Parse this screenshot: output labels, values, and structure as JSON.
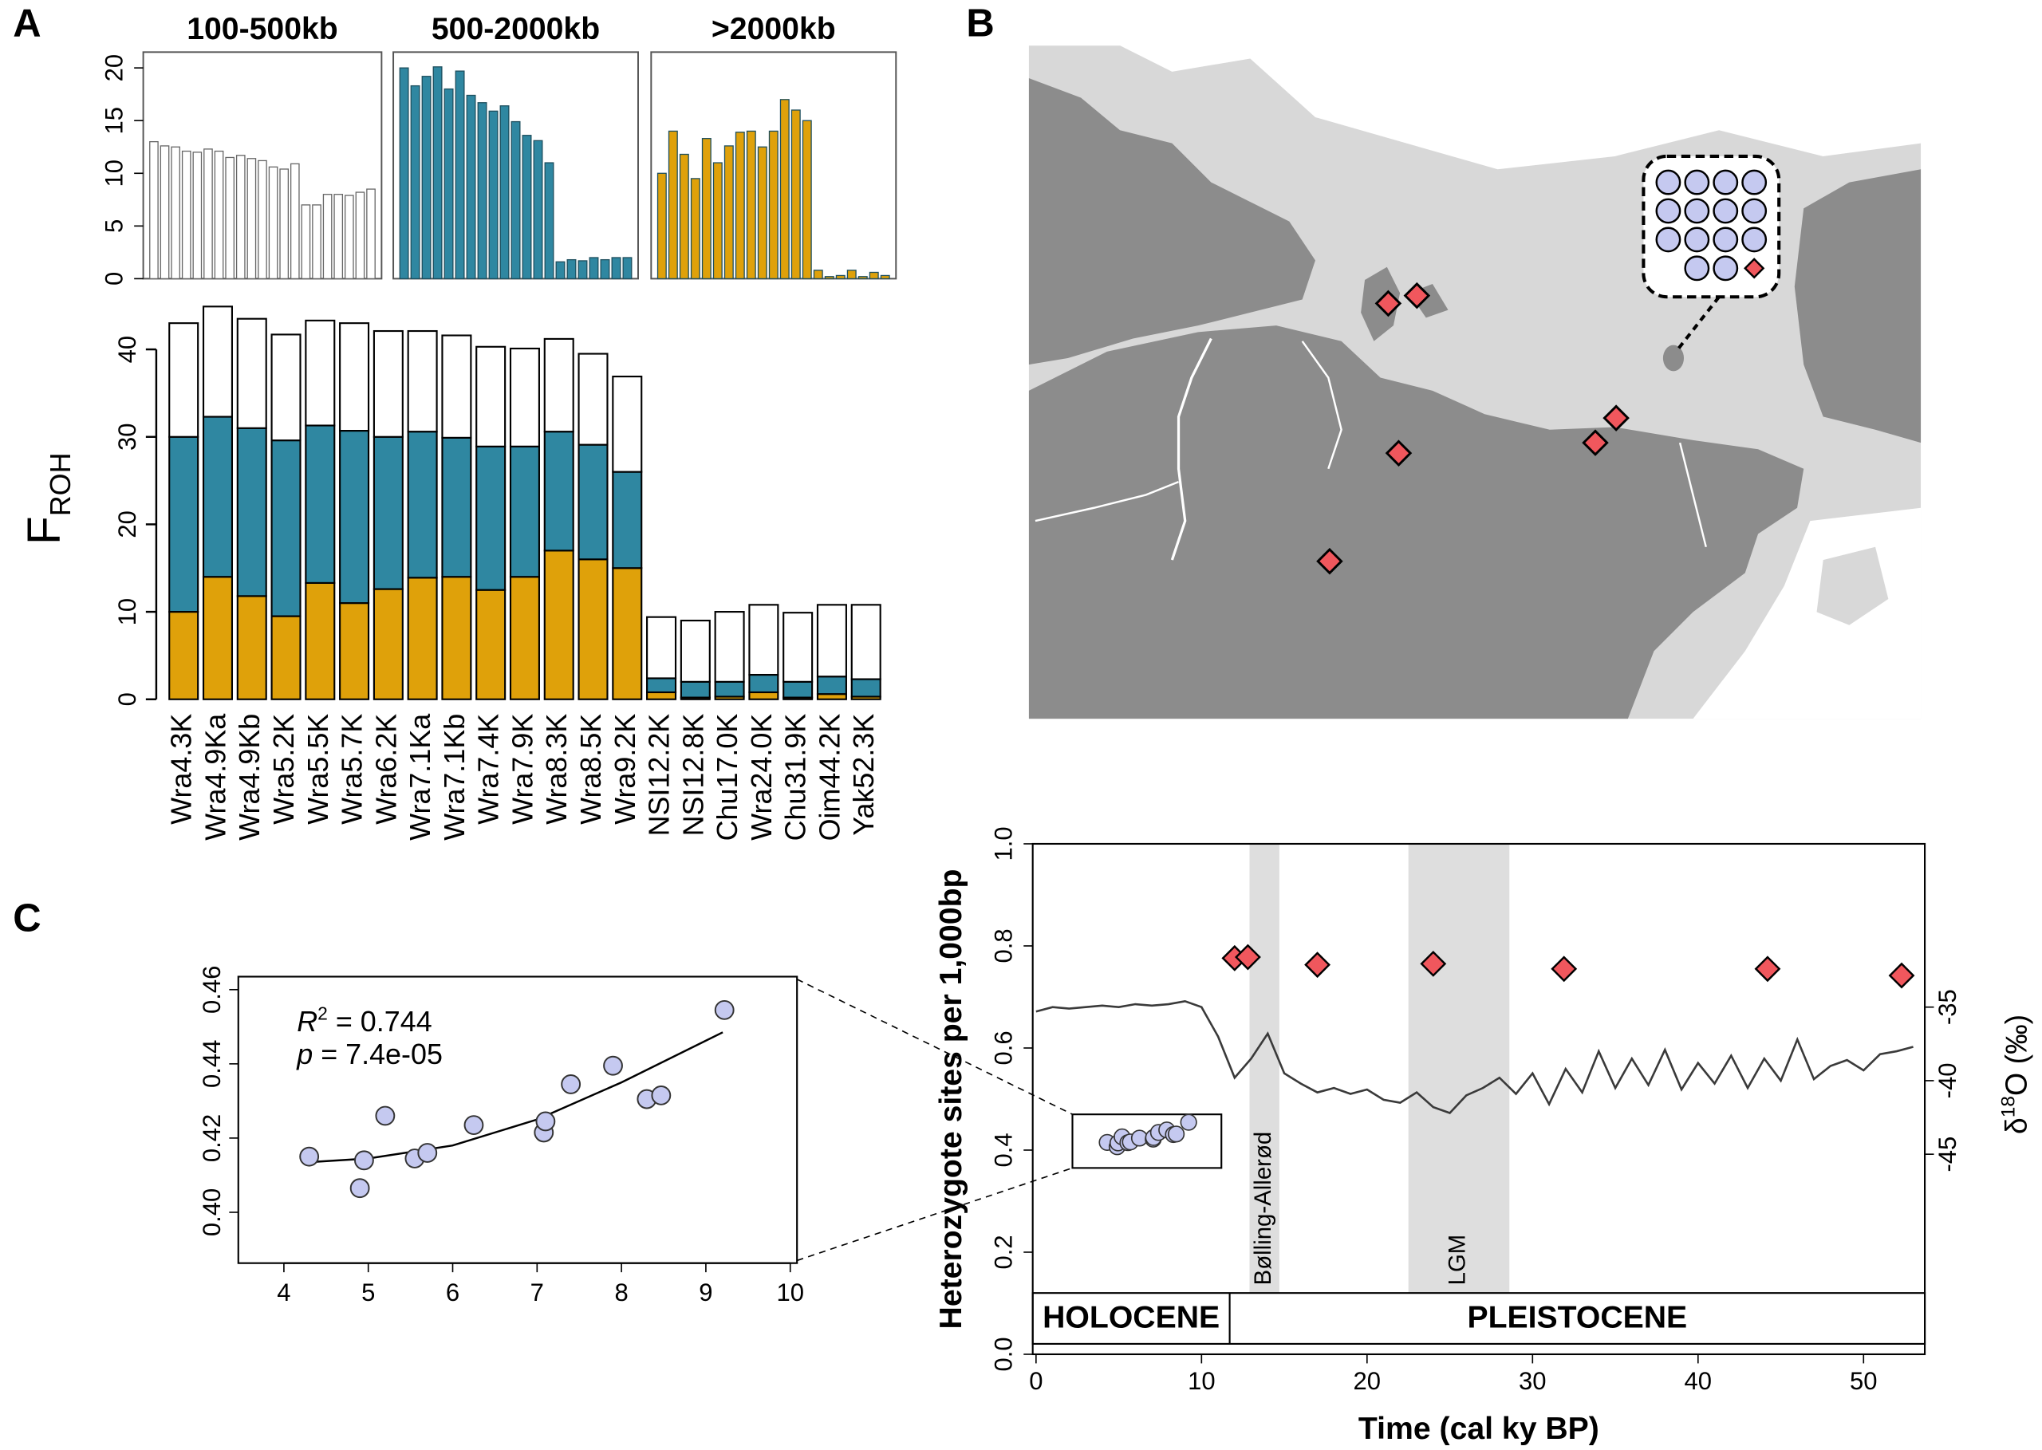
{
  "panel_labels": [
    "A",
    "B",
    "C"
  ],
  "chart_data": [
    {
      "type": "stacked_bar",
      "ylabel": "F",
      "ylabel_sub": "ROH",
      "categories": [
        "Wra4.3K",
        "Wra4.9Ka",
        "Wra4.9Kb",
        "Wra5.2K",
        "Wra5.5K",
        "Wra5.7K",
        "Wra6.2K",
        "Wra7.1Ka",
        "Wra7.1Kb",
        "Wra7.4K",
        "Wra7.9K",
        "Wra8.3K",
        "Wra8.5K",
        "Wra9.2K",
        "NSI12.2K",
        "NSI12.8K",
        "Chu17.0K",
        "Wra24.0K",
        "Chu31.9K",
        "Oim44.2K",
        "Yak52.3K"
      ],
      "series": [
        {
          "name": ">2000kb",
          "color": "#dfa10a",
          "values": [
            10,
            14,
            11.8,
            9.5,
            13.3,
            11,
            12.6,
            13.9,
            14,
            12.5,
            14,
            17,
            16,
            15,
            0.8,
            0.2,
            0.3,
            0.8,
            0.2,
            0.6,
            0.3
          ]
        },
        {
          "name": "500-2000kb",
          "color": "#2f87a1",
          "values": [
            20,
            18.3,
            19.2,
            20.1,
            18,
            19.7,
            17.4,
            16.7,
            15.9,
            16.4,
            14.9,
            13.6,
            13.1,
            11,
            1.6,
            1.8,
            1.7,
            2,
            1.8,
            2,
            2
          ]
        },
        {
          "name": "100-500kb",
          "color": "#ffffff",
          "values": [
            13,
            12.6,
            12.5,
            12.1,
            12,
            12.3,
            12.1,
            11.5,
            11.7,
            11.4,
            11.2,
            10.6,
            10.4,
            10.9,
            7,
            7,
            8,
            8,
            7.9,
            8.2,
            8.5
          ]
        }
      ],
      "ylim": [
        0,
        46
      ],
      "yticks": [
        0,
        10,
        20,
        30,
        40
      ],
      "panel_ylim": [
        0,
        21.5
      ],
      "panel_yticks": [
        0,
        5,
        10,
        15,
        20
      ]
    },
    {
      "type": "scatter",
      "x": [
        4.3,
        4.9,
        4.95,
        5.2,
        5.55,
        5.7,
        6.25,
        7.08,
        7.1,
        7.4,
        7.9,
        8.3,
        8.47,
        9.22
      ],
      "values": [
        0.415,
        0.4065,
        0.414,
        0.426,
        0.4145,
        0.416,
        0.4235,
        0.4215,
        0.4245,
        0.4345,
        0.4395,
        0.4305,
        0.4315,
        0.4545
      ],
      "color": "#c5c9f0",
      "fit_x": [
        4.3,
        5,
        6,
        7,
        8,
        9.2
      ],
      "fit_y": [
        0.4135,
        0.4145,
        0.418,
        0.425,
        0.435,
        0.4485
      ],
      "r2": {
        "symbol": "R",
        "sup": "2",
        "text": " = 0.744"
      },
      "p": {
        "symbol": "p",
        "text": " = 7.4e-05"
      },
      "xlim": [
        3.46,
        10.08
      ],
      "ylim": [
        0.3863,
        0.4635
      ],
      "xticks": [
        4,
        5,
        6,
        7,
        8,
        9,
        10
      ],
      "yticks": [
        {
          "value": 0.4,
          "label": "0.40"
        },
        0.42,
        0.44,
        0.46
      ]
    },
    {
      "type": "time_series",
      "xlabel": "Time (cal ky BP)",
      "ylabel": "Heterozygote sites per 1,000bp",
      "y2label": {
        "prefix": "δ",
        "sup": "18",
        "text": "O (‰)"
      },
      "points": {
        "x": [
          12.0,
          12.8,
          17.0,
          24.0,
          31.9,
          44.2,
          52.3
        ],
        "values": [
          0.776,
          0.778,
          0.763,
          0.765,
          0.755,
          0.755,
          0.742
        ],
        "color": "#f0575d"
      },
      "isotope": {
        "axis": "y2",
        "color": "#3a3a3a",
        "x": [
          0,
          1,
          2,
          3,
          4,
          5,
          6,
          7,
          8,
          9,
          10,
          11,
          12,
          13,
          14,
          15,
          16,
          17,
          18,
          19,
          20,
          21,
          22,
          23,
          24,
          25,
          26,
          27,
          28,
          29,
          30,
          31,
          32,
          33,
          34,
          35,
          36,
          37,
          38,
          39,
          40,
          41,
          42,
          43,
          44,
          45,
          46,
          47,
          48,
          49,
          50,
          51,
          52,
          53
        ],
        "values": [
          -35.3,
          -35.0,
          -35.1,
          -35.0,
          -34.9,
          -35.0,
          -34.8,
          -34.9,
          -34.8,
          -34.6,
          -35.0,
          -37.0,
          -39.8,
          -38.5,
          -36.8,
          -39.5,
          -40.2,
          -40.8,
          -40.5,
          -40.9,
          -40.6,
          -41.3,
          -41.5,
          -40.8,
          -41.8,
          -42.2,
          -41.0,
          -40.5,
          -39.8,
          -40.9,
          -39.5,
          -41.6,
          -39.2,
          -40.8,
          -38.0,
          -40.5,
          -38.5,
          -40.3,
          -37.9,
          -40.6,
          -38.8,
          -40.2,
          -38.3,
          -40.5,
          -38.5,
          -40.0,
          -37.2,
          -39.9,
          -39.0,
          -38.6,
          -39.3,
          -38.2,
          -38.0,
          -37.7
        ]
      },
      "bands": [
        {
          "label": "Bølling-Allerød",
          "start": 12.9,
          "end": 14.7
        },
        {
          "label": "LGM",
          "start": 22.5,
          "end": 28.6
        }
      ],
      "epochs": {
        "labels": [
          "HOLOCENE",
          "PLEISTOCENE"
        ],
        "boundary": 11.7
      },
      "xlim": [
        -0.2,
        53.7
      ],
      "xticks": [
        0,
        10,
        20,
        30,
        40,
        50
      ],
      "ylim": [
        0,
        1
      ],
      "yticks": [
        {
          "value": 0,
          "label": "0.0"
        },
        0.2,
        0.4,
        0.6,
        0.8,
        {
          "value": 1,
          "label": "1.0"
        }
      ],
      "y2lim": [
        -58.6,
        -23.9
      ],
      "y2ticks": [
        -35,
        -40,
        -45
      ]
    }
  ]
}
